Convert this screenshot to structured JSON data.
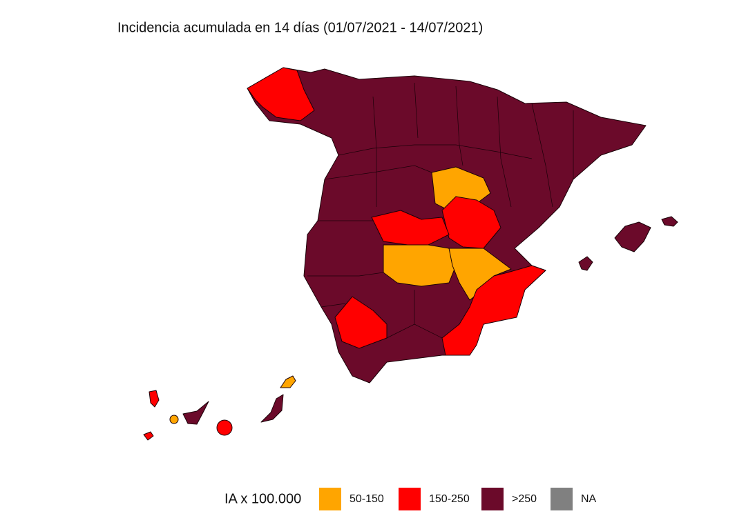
{
  "title": "Incidencia acumulada en 14 días (01/07/2021 - 14/07/2021)",
  "legend": {
    "title": "IA x 100.000",
    "items": [
      {
        "label": "50-150",
        "color": "#ffa500"
      },
      {
        "label": "150-250",
        "color": "#ff0000"
      },
      {
        "label": ">250",
        "color": "#6b0a2a"
      },
      {
        "label": "NA",
        "color": "#808080"
      }
    ]
  }
}
